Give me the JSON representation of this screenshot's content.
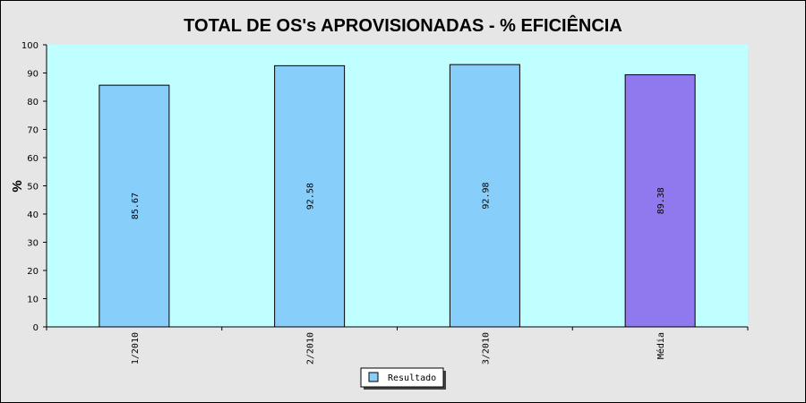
{
  "chart_data": {
    "type": "bar",
    "title": "TOTAL DE OS's APROVISIONADAS - % EFICIÊNCIA",
    "xlabel": "",
    "ylabel": "%",
    "ylim": [
      0,
      100
    ],
    "yticks": [
      0,
      10,
      20,
      30,
      40,
      50,
      60,
      70,
      80,
      90,
      100
    ],
    "categories": [
      "1/2010",
      "2/2010",
      "3/2010",
      "Média"
    ],
    "series": [
      {
        "name": "Resultado",
        "values": [
          85.67,
          92.58,
          92.98,
          89.38
        ]
      }
    ],
    "value_labels": [
      "85.67",
      "92.58",
      "92.98",
      "89.38"
    ],
    "bar_colors": [
      "#87cefa",
      "#87cefa",
      "#87cefa",
      "#9079ef"
    ],
    "legend": {
      "entries": [
        "Resultado"
      ],
      "placement": "bottom-center",
      "swatch_color": "#87cefa"
    },
    "plot_background": "#c0ffff",
    "page_background": "#e6e6e6",
    "grid": false
  }
}
